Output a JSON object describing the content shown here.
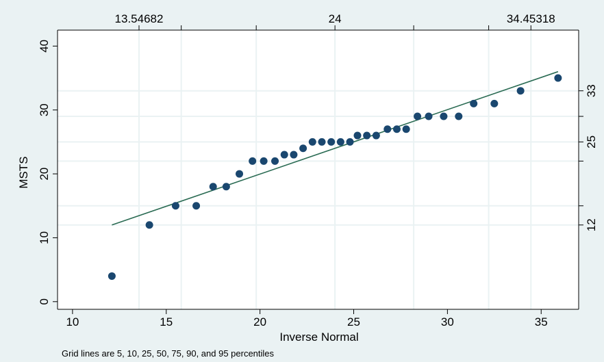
{
  "chart_data": {
    "type": "scatter",
    "title": "",
    "xlabel": "Inverse Normal",
    "ylabel": "MSTS",
    "note": "Grid lines are 5, 10, 25, 50, 75, 90, and 95 percentiles",
    "xlim": [
      9.2,
      37.0
    ],
    "ylim": [
      -1.2,
      42.5
    ],
    "x_ticks": [
      10,
      15,
      20,
      25,
      30,
      35
    ],
    "y_ticks": [
      0,
      10,
      20,
      30,
      40
    ],
    "top_axis_ticks": [
      {
        "value": 13.54682,
        "label": "13.54682"
      },
      {
        "value": 24,
        "label": "24"
      },
      {
        "value": 34.45318,
        "label": "34.45318"
      }
    ],
    "top_axis_minor_ticks": [
      15.8,
      19.8,
      28.2,
      32.2
    ],
    "right_axis_ticks": [
      {
        "value": 12,
        "label": "12"
      },
      {
        "value": 25,
        "label": "25"
      },
      {
        "value": 33,
        "label": "33"
      }
    ],
    "right_axis_minor_ticks": [
      15,
      22,
      29
    ],
    "vertical_gridlines": [
      13.54682,
      15.8,
      19.8,
      24,
      28.2,
      32.2,
      34.45318
    ],
    "horizontal_gridlines": [
      12,
      15,
      22,
      25,
      29,
      33
    ],
    "fit_line": {
      "x": [
        12.1,
        35.9
      ],
      "y": [
        12.0,
        36.0
      ]
    },
    "series": [
      {
        "x": [
          12.1,
          14.1,
          15.5,
          16.6,
          17.5,
          18.2,
          18.9,
          19.6,
          20.2,
          20.8,
          21.3,
          21.8,
          22.3,
          22.8,
          23.3,
          23.8,
          24.3,
          24.8,
          25.2,
          25.7,
          26.2,
          26.8,
          27.3,
          27.8,
          28.4,
          29.0,
          29.8,
          30.6,
          31.4,
          32.5,
          33.9,
          35.9
        ],
        "y": [
          4,
          12,
          15,
          15,
          18,
          18,
          20,
          22,
          22,
          22,
          23,
          23,
          24,
          25,
          25,
          25,
          25,
          25,
          26,
          26,
          26,
          27,
          27,
          27,
          29,
          29,
          29,
          29,
          31,
          31,
          33,
          35
        ]
      }
    ],
    "colors": {
      "background": "#eaf2f3",
      "plot_background": "#ffffff",
      "grid": "#eaf2f3",
      "marker": "#1a476f",
      "fit_line": "#2a6b53",
      "axis": "#000000"
    }
  }
}
